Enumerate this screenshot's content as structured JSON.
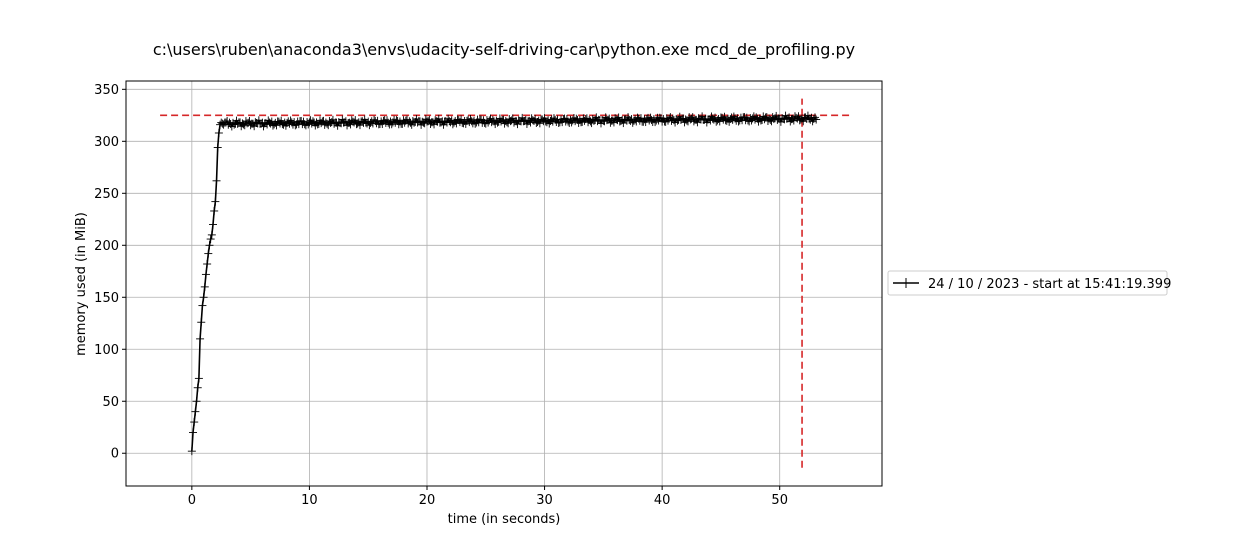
{
  "chart_data": {
    "type": "line",
    "title": "c:\\users\\ruben\\anaconda3\\envs\\udacity-self-driving-car\\python.exe mcd_de_profiling.py",
    "xlabel": "time (in seconds)",
    "ylabel": "memory used (in MiB)",
    "xlim": [
      -5.6,
      58.7
    ],
    "ylim": [
      -31.5,
      358
    ],
    "xticks": [
      0,
      10,
      20,
      30,
      40,
      50
    ],
    "yticks": [
      0,
      50,
      100,
      150,
      200,
      250,
      300,
      350
    ],
    "grid": true,
    "legend_position": "outside-right",
    "series": [
      {
        "name": "24 / 10 / 2023 - start at 15:41:19.399",
        "color": "#000000",
        "marker": "+",
        "x": [
          0.0,
          0.1,
          0.2,
          0.3,
          0.4,
          0.5,
          0.6,
          0.7,
          0.8,
          0.9,
          1.0,
          1.1,
          1.2,
          1.3,
          1.4,
          1.5,
          1.6,
          1.7,
          1.8,
          1.9,
          2.0,
          2.1,
          2.2,
          2.3,
          2.4,
          2.5,
          2.6,
          2.7,
          2.8
        ],
        "y": [
          2,
          20,
          30,
          40,
          50,
          63,
          72,
          110,
          126,
          142,
          150,
          160,
          172,
          182,
          192,
          200,
          206,
          210,
          220,
          233,
          242,
          262,
          294,
          308,
          316,
          318,
          317,
          316,
          318
        ],
        "plateau": {
          "x_start": 2.8,
          "x_end": 53.1,
          "y_start": 317,
          "y_end": 322,
          "jitter": 3
        }
      }
    ],
    "annotations": {
      "max_memory_line": {
        "y": 325,
        "x_range": [
          -2.7,
          55.9
        ],
        "color": "#d62728"
      },
      "max_time_line": {
        "x": 51.9,
        "y_range": [
          -14,
          341
        ],
        "color": "#d62728"
      }
    }
  }
}
